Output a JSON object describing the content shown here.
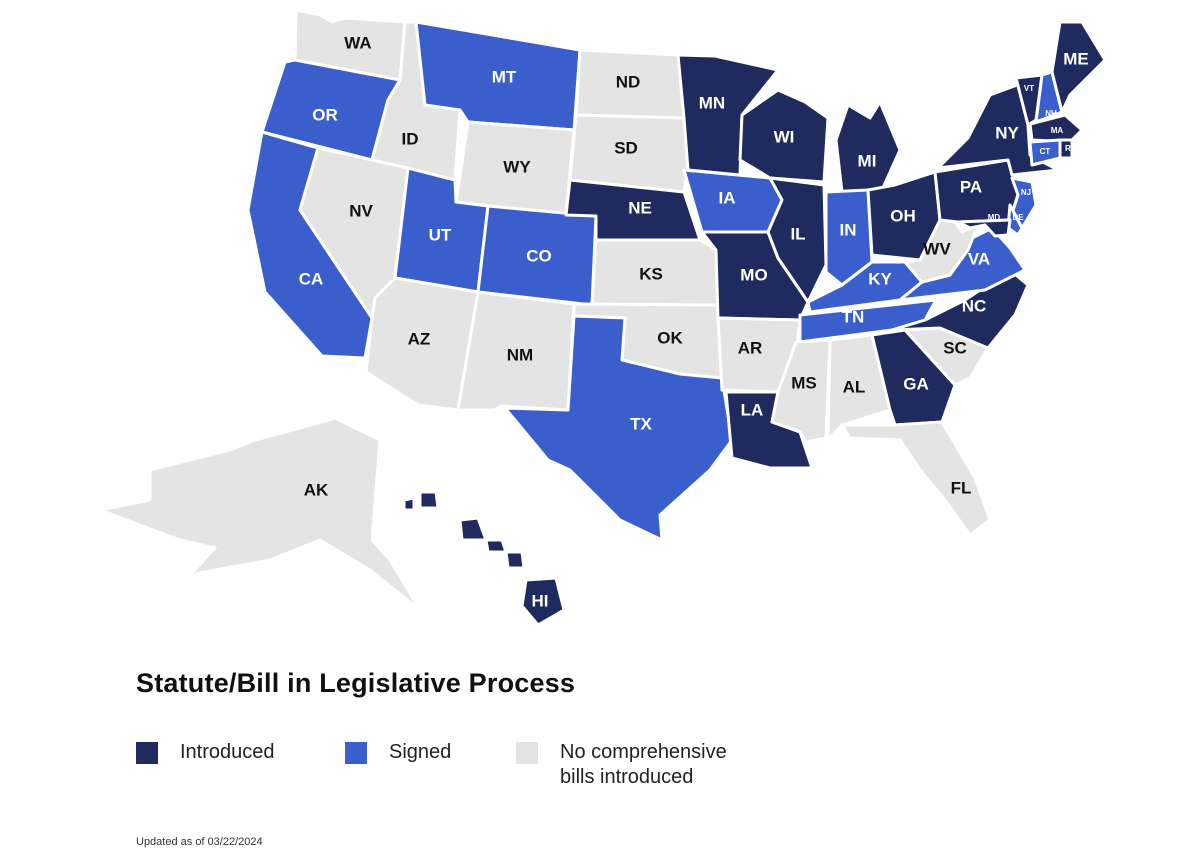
{
  "colors": {
    "introduced": "#1f2a5e",
    "signed": "#3a5fcd",
    "none": "#e4e4e4",
    "label_on_dark": "#ffffff",
    "label_on_light": "#111111"
  },
  "legend": {
    "title": "Statute/Bill in Legislative Process",
    "items": [
      {
        "status": "introduced",
        "label": "Introduced"
      },
      {
        "status": "signed",
        "label": "Signed"
      },
      {
        "status": "none",
        "label_line1": "No comprehensive",
        "label_line2": "bills introduced"
      }
    ]
  },
  "footnote": "Updated as of 03/22/2024",
  "states": {
    "WA": "none",
    "OR": "signed",
    "CA": "signed",
    "ID": "none",
    "NV": "none",
    "MT": "signed",
    "WY": "none",
    "UT": "signed",
    "AZ": "none",
    "CO": "signed",
    "NM": "none",
    "ND": "none",
    "SD": "none",
    "NE": "introduced",
    "KS": "none",
    "OK": "none",
    "TX": "signed",
    "MN": "introduced",
    "IA": "signed",
    "MO": "introduced",
    "AR": "none",
    "LA": "introduced",
    "WI": "introduced",
    "IL": "introduced",
    "MI": "introduced",
    "IN": "signed",
    "OH": "introduced",
    "KY": "signed",
    "TN": "signed",
    "MS": "none",
    "AL": "none",
    "GA": "introduced",
    "FL": "none",
    "SC": "none",
    "NC": "introduced",
    "VA": "signed",
    "WV": "none",
    "PA": "introduced",
    "NY": "introduced",
    "NJ": "signed",
    "DE": "signed",
    "MD": "introduced",
    "VT": "introduced",
    "NH": "signed",
    "ME": "introduced",
    "MA": "introduced",
    "CT": "signed",
    "RI": "introduced",
    "AK": "none",
    "HI": "introduced"
  }
}
